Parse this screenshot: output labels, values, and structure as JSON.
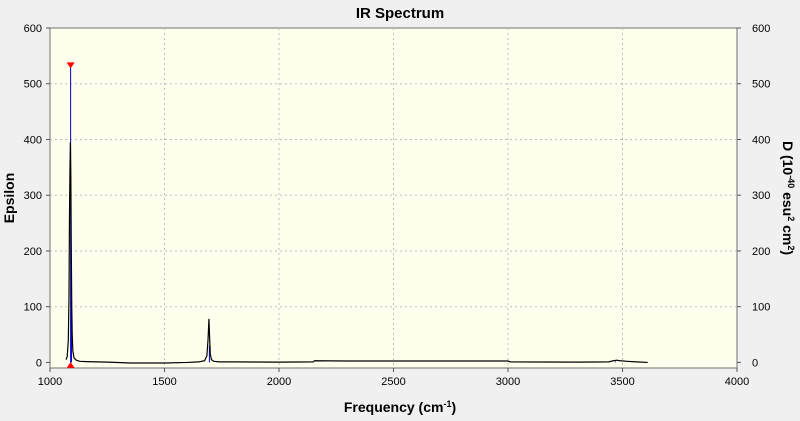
{
  "chart_data": {
    "type": "line",
    "title": "IR Spectrum",
    "xlabel": "Frequency (cm",
    "xlabel_sup": "-1",
    "xlabel_tail": ")",
    "ylabel": "Epsilon",
    "y2label": {
      "prefix": "D (10",
      "exp1": "-40",
      "mid": " esu",
      "exp2": "2",
      "mid2": " cm",
      "exp3": "2",
      "tail": ")"
    },
    "xlim": [
      1000,
      4000
    ],
    "ylim": [
      -10,
      600
    ],
    "xticks": [
      1000,
      1500,
      2000,
      2500,
      3000,
      3500,
      4000
    ],
    "yticks": [
      0,
      100,
      200,
      300,
      400,
      500,
      600
    ],
    "y2lim": [
      -10,
      600
    ],
    "y2ticks": [
      0,
      100,
      200,
      300,
      400,
      500,
      600
    ],
    "grid": true,
    "colors": {
      "plot_bg": "#ffffee",
      "spectrum": "#000000",
      "stick": "#0000cc",
      "marker": "#ff0000"
    },
    "spectrum": {
      "x": [
        1070,
        1075,
        1080,
        1083,
        1085,
        1087,
        1089,
        1091,
        1093,
        1095,
        1097,
        1100,
        1105,
        1115,
        1130,
        1160,
        1250,
        1350,
        1500,
        1600,
        1650,
        1675,
        1685,
        1690,
        1694,
        1697,
        1700,
        1705,
        1715,
        1740,
        1800,
        2000,
        2150,
        2155,
        2300,
        2600,
        3000,
        3010,
        3300,
        3440,
        3460,
        3475,
        3490,
        3520,
        3560,
        3610
      ],
      "y": [
        5,
        10,
        40,
        120,
        260,
        340,
        395,
        330,
        200,
        100,
        50,
        20,
        8,
        4,
        2,
        1.5,
        0.5,
        -1,
        -1,
        0,
        1,
        3,
        12,
        40,
        78,
        45,
        15,
        5,
        2,
        1,
        1,
        0.5,
        1,
        3,
        2.5,
        2.5,
        2.5,
        1,
        0.5,
        1,
        3,
        4,
        3,
        2,
        1,
        0
      ]
    },
    "sticks": [
      {
        "x": 1090,
        "y": 533
      },
      {
        "x": 1094,
        "y": 110
      },
      {
        "x": 1696,
        "y": 30
      },
      {
        "x": 3470,
        "y": 2
      }
    ],
    "marker_x": 1090
  }
}
